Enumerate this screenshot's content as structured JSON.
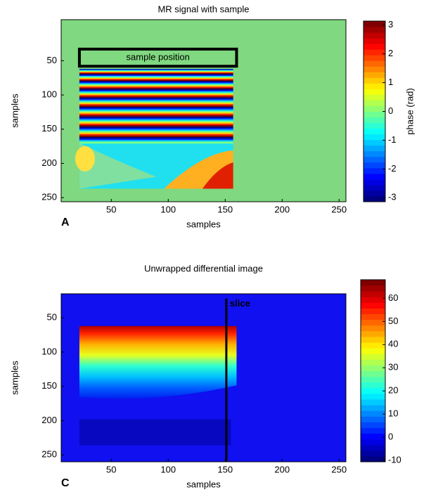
{
  "chart_data": [
    {
      "type": "heatmap",
      "title": "MR signal with sample",
      "xlabel": "samples",
      "ylabel": "samples",
      "xlim": [
        6,
        256
      ],
      "ylim": [
        -10,
        256
      ],
      "xticks": [
        50,
        100,
        150,
        200,
        250
      ],
      "yticks": [
        50,
        100,
        150,
        200,
        250
      ],
      "colorbar_label": "phase (rad)",
      "clim": [
        -3.14,
        3.14
      ],
      "cticks": [
        -3,
        -2,
        -1,
        0,
        1,
        2,
        3
      ],
      "annotation": "sample position",
      "panel_label": "A"
    },
    {
      "type": "heatmap",
      "title": "Unwrapped differential image",
      "xlabel": "samples",
      "ylabel": "samples",
      "xlim": [
        6,
        256
      ],
      "ylim": [
        15,
        260
      ],
      "xticks": [
        50,
        100,
        150,
        200,
        250
      ],
      "yticks": [
        50,
        100,
        150,
        200,
        250
      ],
      "clim": [
        -10.6,
        68
      ],
      "cticks": [
        -10,
        0,
        10,
        20,
        30,
        40,
        50,
        60
      ],
      "annotation": "slice",
      "annotation_x": 151,
      "panel_label": "C"
    }
  ]
}
